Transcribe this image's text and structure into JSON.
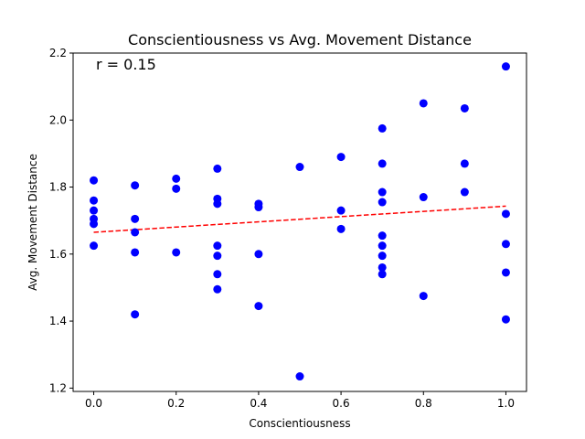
{
  "chart_data": {
    "type": "scatter",
    "title": "Conscientiousness vs Avg. Movement Distance",
    "xlabel": "Conscientiousness",
    "ylabel": "Avg. Movement Distance",
    "xlim": [
      -0.05,
      1.05
    ],
    "ylim": [
      1.19,
      2.2
    ],
    "xticks": [
      0.0,
      0.2,
      0.4,
      0.6,
      0.8,
      1.0
    ],
    "xtick_labels": [
      "0.0",
      "0.2",
      "0.4",
      "0.6",
      "0.8",
      "1.0"
    ],
    "yticks": [
      1.2,
      1.4,
      1.6,
      1.8,
      2.0,
      2.2
    ],
    "ytick_labels": [
      "1.2",
      "1.4",
      "1.6",
      "1.8",
      "2.0",
      "2.2"
    ],
    "grid": false,
    "annotation": "r = 0.15",
    "point_color": "#0000ff",
    "trend_color": "#ff0000",
    "trendline": {
      "x": [
        0.0,
        1.0
      ],
      "y": [
        1.665,
        1.743
      ],
      "style": "dashed"
    },
    "points": [
      {
        "x": 0.0,
        "y": 1.82
      },
      {
        "x": 0.0,
        "y": 1.76
      },
      {
        "x": 0.0,
        "y": 1.73
      },
      {
        "x": 0.0,
        "y": 1.705
      },
      {
        "x": 0.0,
        "y": 1.69
      },
      {
        "x": 0.0,
        "y": 1.625
      },
      {
        "x": 0.1,
        "y": 1.805
      },
      {
        "x": 0.1,
        "y": 1.705
      },
      {
        "x": 0.1,
        "y": 1.665
      },
      {
        "x": 0.1,
        "y": 1.605
      },
      {
        "x": 0.1,
        "y": 1.42
      },
      {
        "x": 0.2,
        "y": 1.825
      },
      {
        "x": 0.2,
        "y": 1.795
      },
      {
        "x": 0.2,
        "y": 1.605
      },
      {
        "x": 0.3,
        "y": 1.855
      },
      {
        "x": 0.3,
        "y": 1.765
      },
      {
        "x": 0.3,
        "y": 1.75
      },
      {
        "x": 0.3,
        "y": 1.625
      },
      {
        "x": 0.3,
        "y": 1.595
      },
      {
        "x": 0.3,
        "y": 1.54
      },
      {
        "x": 0.3,
        "y": 1.495
      },
      {
        "x": 0.4,
        "y": 1.75
      },
      {
        "x": 0.4,
        "y": 1.74
      },
      {
        "x": 0.4,
        "y": 1.6
      },
      {
        "x": 0.4,
        "y": 1.445
      },
      {
        "x": 0.5,
        "y": 1.86
      },
      {
        "x": 0.5,
        "y": 1.235
      },
      {
        "x": 0.6,
        "y": 1.89
      },
      {
        "x": 0.6,
        "y": 1.73
      },
      {
        "x": 0.6,
        "y": 1.675
      },
      {
        "x": 0.7,
        "y": 1.975
      },
      {
        "x": 0.7,
        "y": 1.87
      },
      {
        "x": 0.7,
        "y": 1.785
      },
      {
        "x": 0.7,
        "y": 1.755
      },
      {
        "x": 0.7,
        "y": 1.655
      },
      {
        "x": 0.7,
        "y": 1.625
      },
      {
        "x": 0.7,
        "y": 1.595
      },
      {
        "x": 0.7,
        "y": 1.56
      },
      {
        "x": 0.7,
        "y": 1.54
      },
      {
        "x": 0.8,
        "y": 2.05
      },
      {
        "x": 0.8,
        "y": 1.77
      },
      {
        "x": 0.8,
        "y": 1.475
      },
      {
        "x": 0.9,
        "y": 2.035
      },
      {
        "x": 0.9,
        "y": 1.87
      },
      {
        "x": 0.9,
        "y": 1.785
      },
      {
        "x": 1.0,
        "y": 2.16
      },
      {
        "x": 1.0,
        "y": 1.72
      },
      {
        "x": 1.0,
        "y": 1.63
      },
      {
        "x": 1.0,
        "y": 1.545
      },
      {
        "x": 1.0,
        "y": 1.405
      }
    ]
  }
}
